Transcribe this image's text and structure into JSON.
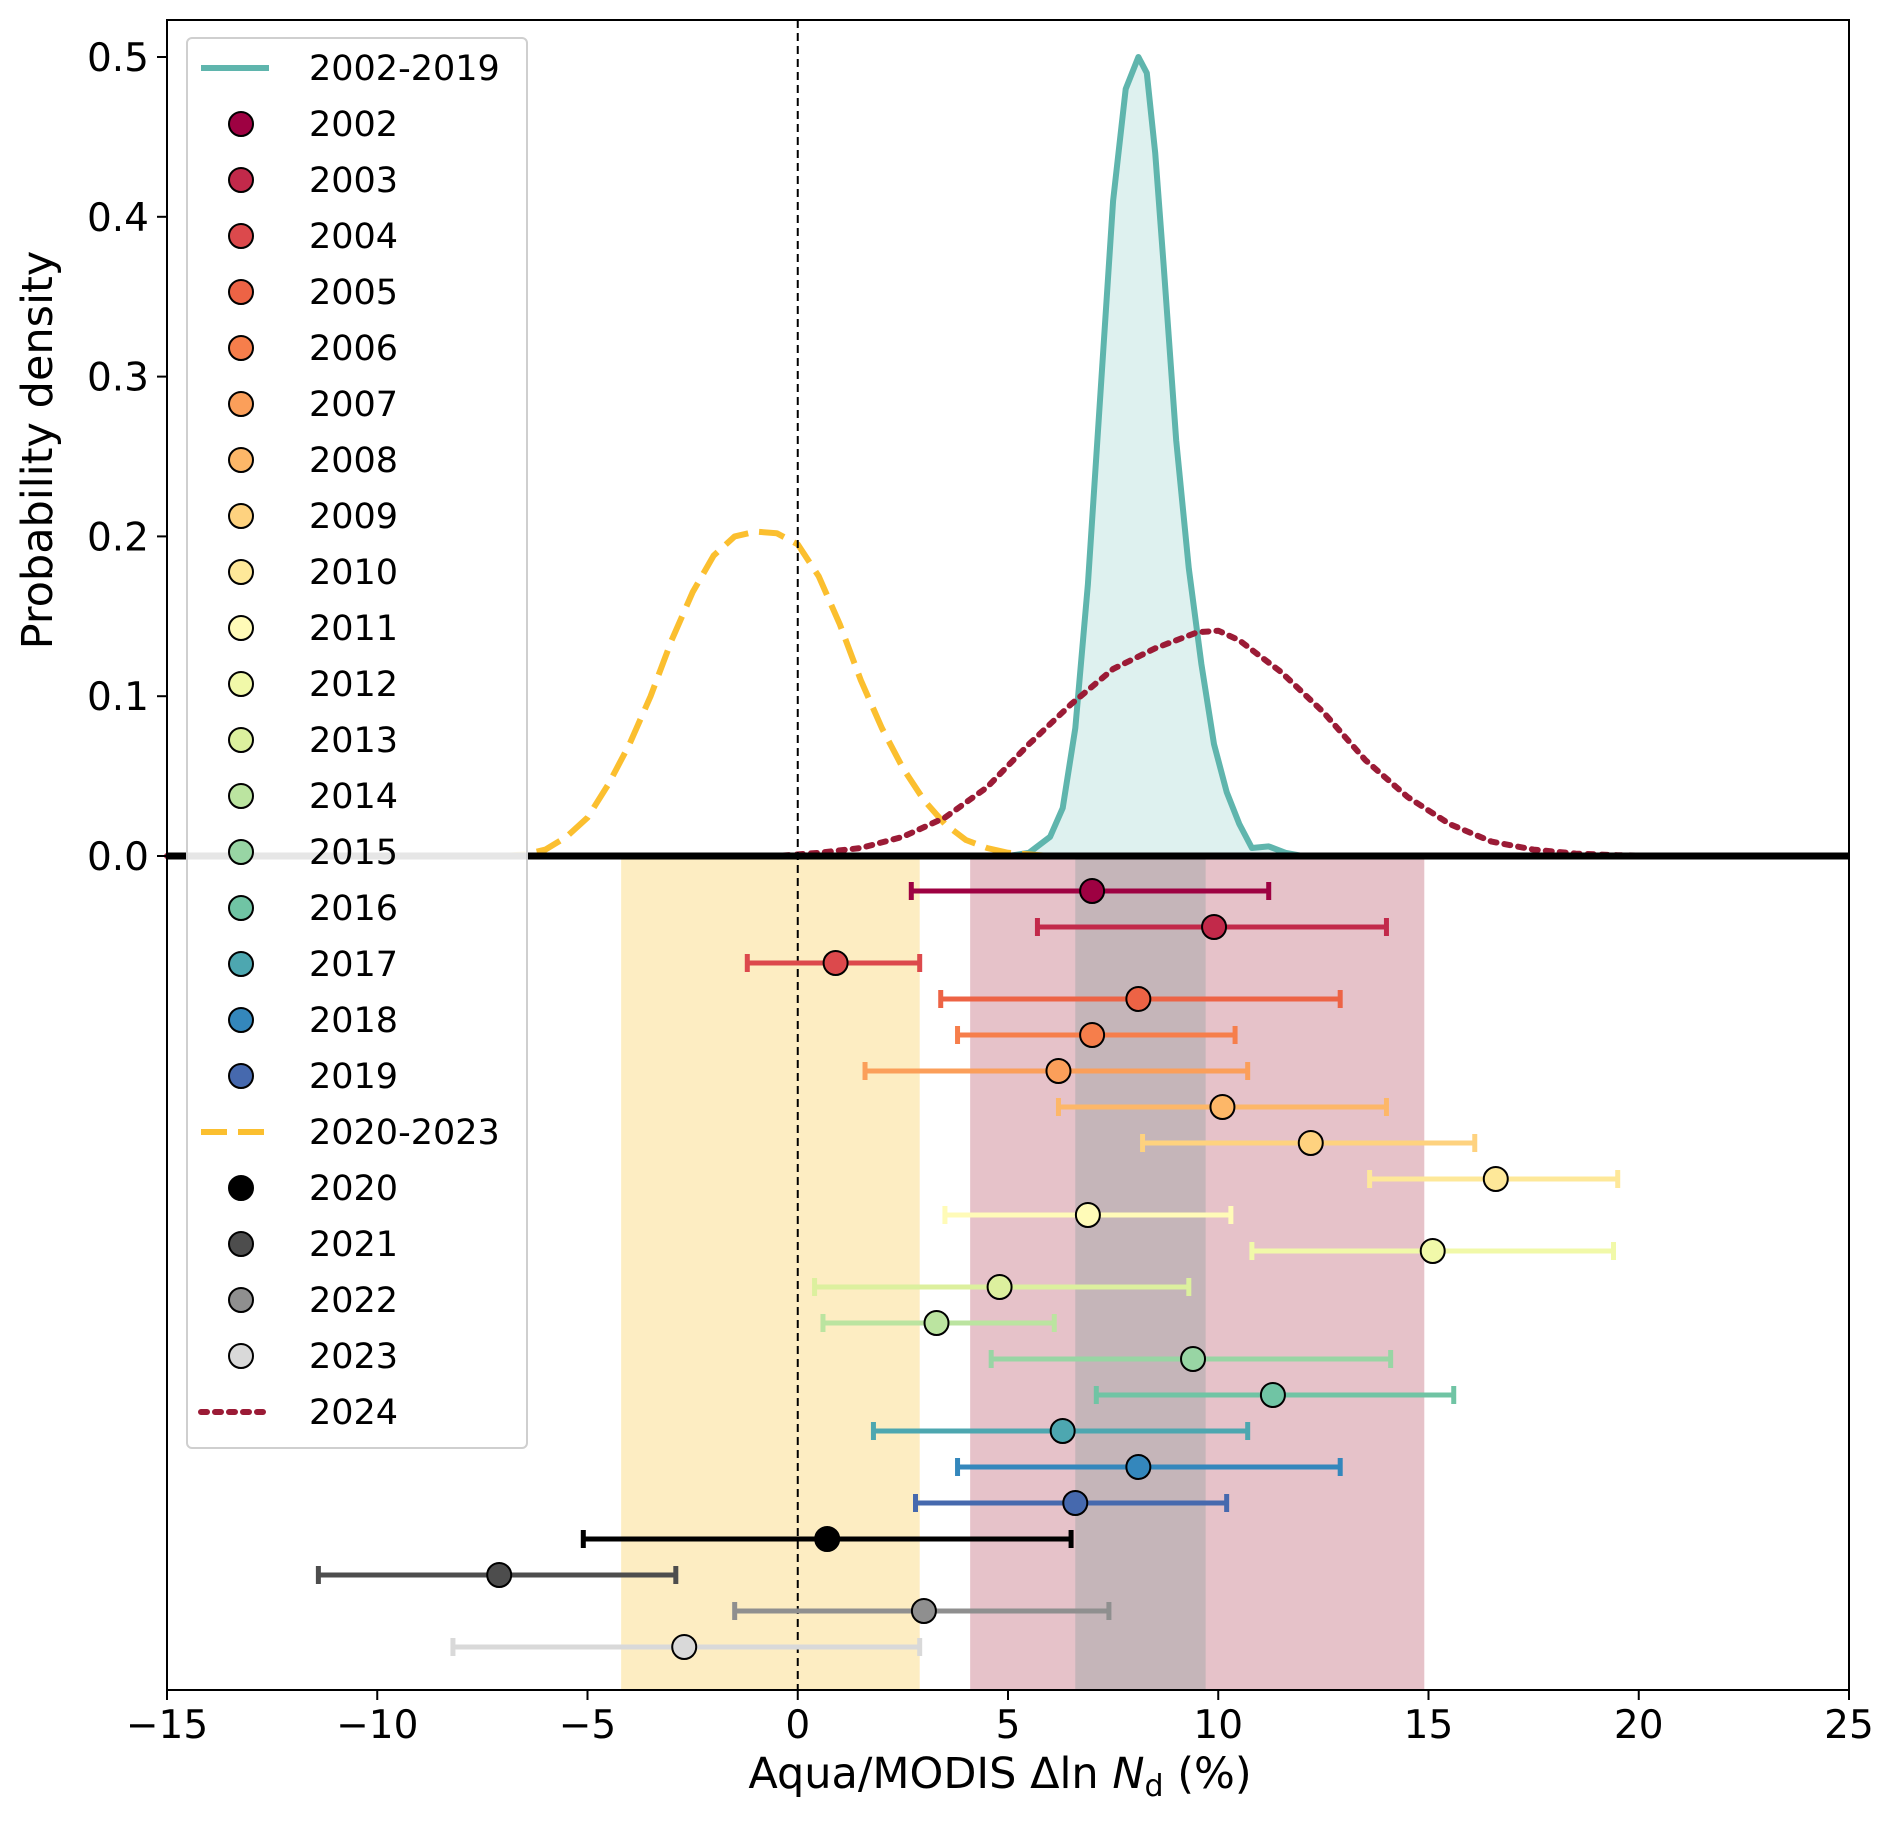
{
  "chart_data": {
    "type": "line",
    "title": "",
    "xlabel": "Aqua/MODIS Δln N_d (%)",
    "xlabel_parts": {
      "prefix": "Aqua/MODIS Δln ",
      "italic": "N",
      "subscript": "d",
      "suffix": " (%)"
    },
    "ylabel": "Probability density",
    "xlim": [
      -15,
      25
    ],
    "ylim_density": [
      0,
      0.5
    ],
    "x_ticks": [
      "−15",
      "−10",
      "−5",
      "0",
      "5",
      "10",
      "15",
      "20",
      "25"
    ],
    "x_tick_values": [
      -15,
      -10,
      -5,
      0,
      5,
      10,
      15,
      20,
      25
    ],
    "y_ticks": [
      "0.0",
      "0.1",
      "0.2",
      "0.3",
      "0.4",
      "0.5"
    ],
    "y_tick_values": [
      0,
      0.1,
      0.2,
      0.3,
      0.4,
      0.5
    ],
    "grid": false,
    "legend_position": "top-left",
    "reference_line_x": 0,
    "shaded_ranges": [
      {
        "name": "2020-2023",
        "x0": -4.2,
        "x1": 2.9,
        "color": "#fdedc2"
      },
      {
        "name": "2024",
        "x0": 4.1,
        "x1": 14.9,
        "color": "#e6c2c9"
      },
      {
        "name": "2002-2019",
        "x0": 6.6,
        "x1": 9.7,
        "color": "#c5b5b9"
      }
    ],
    "densities": [
      {
        "name": "2002-2019",
        "style": "solid",
        "color": "#5fb5ad",
        "fill": "#d8eeec",
        "x": [
          -15,
          5.0,
          5.5,
          6.0,
          6.3,
          6.6,
          6.9,
          7.2,
          7.5,
          7.8,
          8.1,
          8.3,
          8.5,
          8.7,
          9.0,
          9.3,
          9.6,
          9.9,
          10.2,
          10.5,
          10.8,
          11.2,
          11.6,
          12.0,
          25
        ],
        "y": [
          0,
          0,
          0.002,
          0.012,
          0.03,
          0.08,
          0.17,
          0.29,
          0.41,
          0.48,
          0.5,
          0.49,
          0.44,
          0.37,
          0.26,
          0.18,
          0.12,
          0.07,
          0.04,
          0.02,
          0.005,
          0.006,
          0.002,
          0,
          0
        ]
      },
      {
        "name": "2020-2023",
        "style": "dashed",
        "color": "#fbbf2f",
        "x": [
          -15,
          -7,
          -6.5,
          -6.0,
          -5.5,
          -5.0,
          -4.5,
          -4.0,
          -3.5,
          -3.0,
          -2.5,
          -2.0,
          -1.5,
          -1.0,
          -0.5,
          0,
          0.5,
          1.0,
          1.5,
          2.0,
          2.5,
          3.0,
          3.5,
          4.0,
          4.5,
          5.0,
          5.5,
          6.0,
          25
        ],
        "y": [
          0,
          0,
          0.001,
          0.004,
          0.012,
          0.024,
          0.045,
          0.07,
          0.1,
          0.135,
          0.165,
          0.188,
          0.2,
          0.203,
          0.202,
          0.195,
          0.175,
          0.145,
          0.11,
          0.08,
          0.055,
          0.035,
          0.02,
          0.01,
          0.005,
          0.002,
          0.001,
          0,
          0
        ]
      },
      {
        "name": "2024",
        "style": "dotted",
        "color": "#9b1b36",
        "x": [
          -15,
          -0.5,
          0.5,
          1.5,
          2.5,
          3.5,
          4.5,
          5.5,
          6.5,
          7.5,
          8.5,
          9.5,
          10.0,
          10.5,
          11.5,
          12.5,
          13.5,
          14.5,
          15.5,
          16.5,
          17.5,
          18.5,
          19.5,
          20.5,
          25
        ],
        "y": [
          0,
          0,
          0.002,
          0.005,
          0.012,
          0.024,
          0.043,
          0.07,
          0.095,
          0.117,
          0.13,
          0.14,
          0.141,
          0.135,
          0.115,
          0.09,
          0.06,
          0.037,
          0.02,
          0.009,
          0.004,
          0.0015,
          0.0005,
          0,
          0
        ]
      }
    ],
    "yearly_estimates": [
      {
        "year": "2002",
        "mean": 7.0,
        "low": 2.7,
        "high": 11.2,
        "color": "#9e0142"
      },
      {
        "year": "2003",
        "mean": 9.9,
        "low": 5.7,
        "high": 14.0,
        "color": "#c2294a"
      },
      {
        "year": "2004",
        "mean": 0.9,
        "low": -1.2,
        "high": 2.9,
        "color": "#dc494c"
      },
      {
        "year": "2005",
        "mean": 8.1,
        "low": 3.4,
        "high": 12.9,
        "color": "#ed6345"
      },
      {
        "year": "2006",
        "mean": 7.0,
        "low": 3.8,
        "high": 10.4,
        "color": "#f67e4b"
      },
      {
        "year": "2007",
        "mean": 6.2,
        "low": 1.6,
        "high": 10.7,
        "color": "#fb9f5a"
      },
      {
        "year": "2008",
        "mean": 10.1,
        "low": 6.2,
        "high": 14.0,
        "color": "#fdb768"
      },
      {
        "year": "2009",
        "mean": 12.2,
        "low": 8.2,
        "high": 16.1,
        "color": "#fed27f"
      },
      {
        "year": "2010",
        "mean": 16.6,
        "low": 13.6,
        "high": 19.5,
        "color": "#fee899"
      },
      {
        "year": "2011",
        "mean": 6.9,
        "low": 3.5,
        "high": 10.3,
        "color": "#fffbb8"
      },
      {
        "year": "2012",
        "mean": 15.1,
        "low": 10.8,
        "high": 19.4,
        "color": "#f1f9a9"
      },
      {
        "year": "2013",
        "mean": 4.8,
        "low": 0.4,
        "high": 9.3,
        "color": "#dcf09e"
      },
      {
        "year": "2014",
        "mean": 3.3,
        "low": 0.6,
        "high": 6.1,
        "color": "#bbe4a0"
      },
      {
        "year": "2015",
        "mean": 9.4,
        "low": 4.6,
        "high": 14.1,
        "color": "#98d5a4"
      },
      {
        "year": "2016",
        "mean": 11.3,
        "low": 7.1,
        "high": 15.6,
        "color": "#70c4a4"
      },
      {
        "year": "2017",
        "mean": 6.3,
        "low": 1.8,
        "high": 10.7,
        "color": "#4da7b0"
      },
      {
        "year": "2018",
        "mean": 8.1,
        "low": 3.8,
        "high": 12.9,
        "color": "#3487bc"
      },
      {
        "year": "2019",
        "mean": 6.6,
        "low": 2.8,
        "high": 10.2,
        "color": "#4669ae"
      },
      {
        "year": "2020",
        "mean": 0.7,
        "low": -5.1,
        "high": 6.5,
        "color": "#000000"
      },
      {
        "year": "2021",
        "mean": -7.1,
        "low": -11.4,
        "high": -2.9,
        "color": "#4d4d4d"
      },
      {
        "year": "2022",
        "mean": 3.0,
        "low": -1.5,
        "high": 7.4,
        "color": "#8f8f8f"
      },
      {
        "year": "2023",
        "mean": -2.7,
        "low": -8.2,
        "high": 2.9,
        "color": "#d9d9d9"
      }
    ],
    "legend_entries": [
      {
        "label": "2002-2019",
        "kind": "line",
        "style": "solid",
        "color": "#5fb5ad"
      },
      {
        "label": "2002",
        "kind": "marker",
        "color": "#9e0142"
      },
      {
        "label": "2003",
        "kind": "marker",
        "color": "#c2294a"
      },
      {
        "label": "2004",
        "kind": "marker",
        "color": "#dc494c"
      },
      {
        "label": "2005",
        "kind": "marker",
        "color": "#ed6345"
      },
      {
        "label": "2006",
        "kind": "marker",
        "color": "#f67e4b"
      },
      {
        "label": "2007",
        "kind": "marker",
        "color": "#fb9f5a"
      },
      {
        "label": "2008",
        "kind": "marker",
        "color": "#fdb768"
      },
      {
        "label": "2009",
        "kind": "marker",
        "color": "#fed27f"
      },
      {
        "label": "2010",
        "kind": "marker",
        "color": "#fee899"
      },
      {
        "label": "2011",
        "kind": "marker",
        "color": "#fffbb8"
      },
      {
        "label": "2012",
        "kind": "marker",
        "color": "#f1f9a9"
      },
      {
        "label": "2013",
        "kind": "marker",
        "color": "#dcf09e"
      },
      {
        "label": "2014",
        "kind": "marker",
        "color": "#bbe4a0"
      },
      {
        "label": "2015",
        "kind": "marker",
        "color": "#98d5a4"
      },
      {
        "label": "2016",
        "kind": "marker",
        "color": "#70c4a4"
      },
      {
        "label": "2017",
        "kind": "marker",
        "color": "#4da7b0"
      },
      {
        "label": "2018",
        "kind": "marker",
        "color": "#3487bc"
      },
      {
        "label": "2019",
        "kind": "marker",
        "color": "#4669ae"
      },
      {
        "label": "2020-2023",
        "kind": "line",
        "style": "dashed",
        "color": "#fbbf2f"
      },
      {
        "label": "2020",
        "kind": "marker",
        "color": "#000000"
      },
      {
        "label": "2021",
        "kind": "marker",
        "color": "#4d4d4d"
      },
      {
        "label": "2022",
        "kind": "marker",
        "color": "#8f8f8f"
      },
      {
        "label": "2023",
        "kind": "marker",
        "color": "#d9d9d9"
      },
      {
        "label": "2024",
        "kind": "line",
        "style": "dotted",
        "color": "#9b1b36"
      }
    ]
  }
}
